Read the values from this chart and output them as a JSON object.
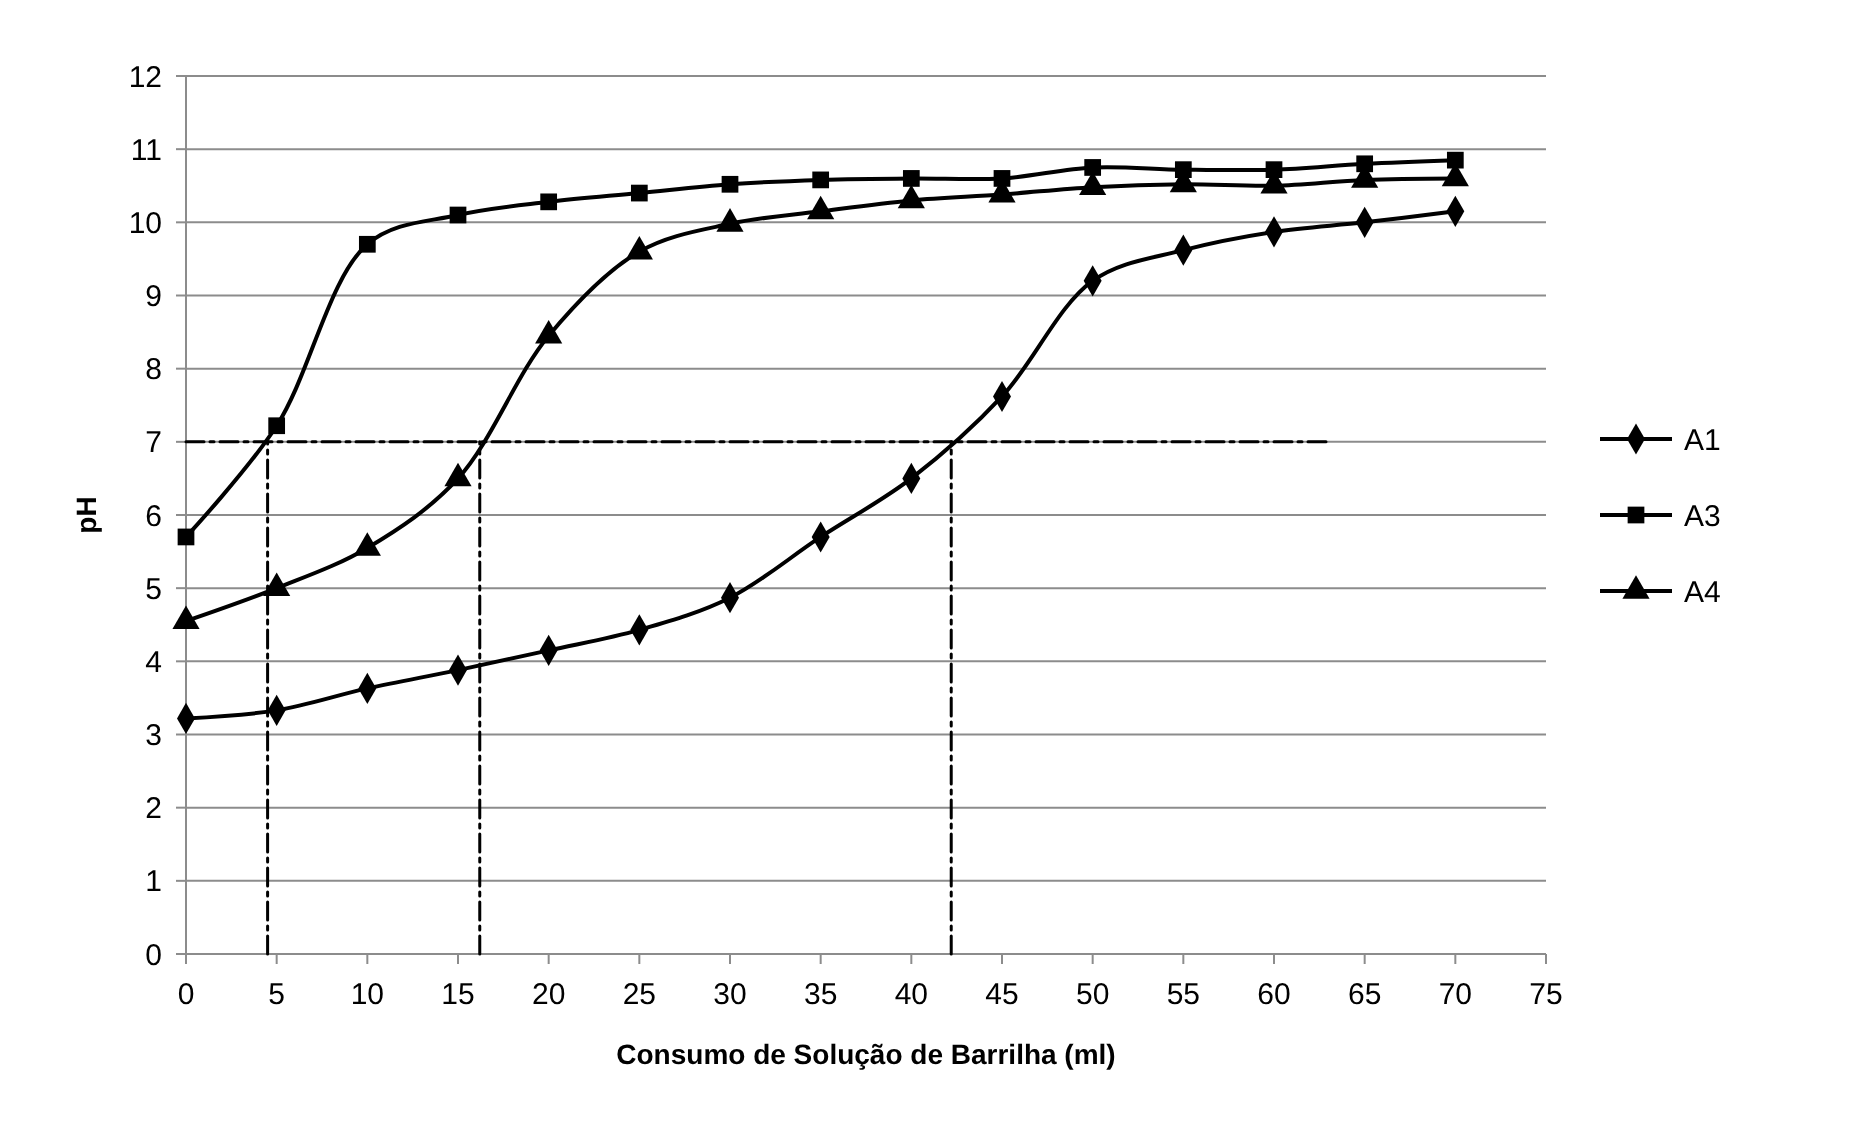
{
  "chart_data": {
    "type": "line",
    "xlabel": "Consumo de Solução de Barrilha (ml)",
    "ylabel": "pH",
    "xlim": [
      0,
      75
    ],
    "xticks": [
      0,
      5,
      10,
      15,
      20,
      25,
      30,
      35,
      40,
      45,
      50,
      55,
      60,
      65,
      70,
      75
    ],
    "ylim": [
      0,
      12
    ],
    "yticks": [
      0,
      1,
      2,
      3,
      4,
      5,
      6,
      7,
      8,
      9,
      10,
      11,
      12
    ],
    "grid": "y",
    "legend": "right",
    "series": [
      {
        "name": "A1",
        "color": "#000000",
        "marker": "diamond",
        "x": [
          0,
          5,
          10,
          15,
          20,
          25,
          30,
          35,
          40,
          45,
          50,
          55,
          60,
          65,
          70
        ],
        "values": [
          3.22,
          3.33,
          3.63,
          3.88,
          4.15,
          4.43,
          4.87,
          5.7,
          6.5,
          7.62,
          9.2,
          9.62,
          9.87,
          10.0,
          10.15
        ]
      },
      {
        "name": "A3",
        "color": "#000000",
        "marker": "square",
        "x": [
          0,
          5,
          10,
          15,
          20,
          25,
          30,
          35,
          40,
          45,
          50,
          55,
          60,
          65,
          70
        ],
        "values": [
          5.7,
          7.22,
          9.7,
          10.1,
          10.28,
          10.4,
          10.52,
          10.58,
          10.6,
          10.6,
          10.75,
          10.72,
          10.72,
          10.8,
          10.85
        ]
      },
      {
        "name": "A4",
        "color": "#000000",
        "marker": "triangle",
        "x": [
          0,
          5,
          10,
          15,
          20,
          25,
          30,
          35,
          40,
          45,
          50,
          55,
          60,
          65,
          70
        ],
        "values": [
          4.55,
          5.0,
          5.55,
          6.5,
          8.45,
          9.6,
          9.98,
          10.15,
          10.3,
          10.38,
          10.48,
          10.52,
          10.5,
          10.58,
          10.6
        ]
      },
      {
        "color": "#000000",
        "marker": "none",
        "line_style": "dashed",
        "x": [
          0,
          63
        ],
        "values": [
          7,
          7
        ]
      },
      {
        "color": "#000000",
        "marker": "none",
        "line_style": "dashed",
        "x": [
          4.5,
          4.5
        ],
        "values": [
          0,
          7
        ]
      },
      {
        "color": "#000000",
        "marker": "none",
        "line_style": "dashed",
        "x": [
          16.2,
          16.2
        ],
        "values": [
          0,
          7
        ]
      },
      {
        "color": "#000000",
        "marker": "none",
        "line_style": "dashed",
        "x": [
          42.2,
          42.2
        ],
        "values": [
          0,
          7
        ]
      }
    ]
  }
}
